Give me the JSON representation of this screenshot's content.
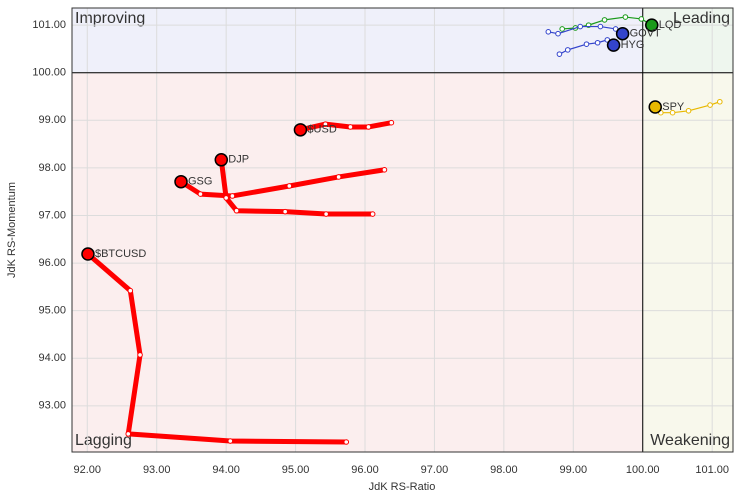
{
  "chart_data": {
    "type": "rrg",
    "x_label": "JdK RS-Ratio",
    "y_label": "JdK RS-Momentum",
    "xlim": [
      91.78,
      101.3
    ],
    "ylim": [
      92.03,
      101.36
    ],
    "xticks": [
      {
        "value": 92,
        "label": "92.00"
      },
      {
        "value": 93,
        "label": "93.00"
      },
      {
        "value": 94,
        "label": "94.00"
      },
      {
        "value": 95,
        "label": "95.00"
      },
      {
        "value": 96,
        "label": "96.00"
      },
      {
        "value": 97,
        "label": "97.00"
      },
      {
        "value": 98,
        "label": "98.00"
      },
      {
        "value": 99,
        "label": "99.00"
      },
      {
        "value": 100,
        "label": "100.00"
      },
      {
        "value": 101,
        "label": "101.00"
      }
    ],
    "yticks": [
      {
        "value": 93,
        "label": "93.00"
      },
      {
        "value": 94,
        "label": "94.00"
      },
      {
        "value": 95,
        "label": "95.00"
      },
      {
        "value": 96,
        "label": "96.00"
      },
      {
        "value": 97,
        "label": "97.00"
      },
      {
        "value": 98,
        "label": "98.00"
      },
      {
        "value": 99,
        "label": "99.00"
      },
      {
        "value": 100,
        "label": "100.00"
      },
      {
        "value": 101,
        "label": "101.00"
      }
    ],
    "grid": true,
    "quadrant_center": {
      "x": 100,
      "y": 100
    },
    "quadrants": [
      {
        "label": "Improving",
        "corner": "top-left",
        "color": "#8c91e3",
        "fill": "#eff0fa"
      },
      {
        "label": "Leading",
        "corner": "top-right",
        "color": "#7cc47c",
        "fill": "#eef6ee"
      },
      {
        "label": "Lagging",
        "corner": "bottom-left",
        "color": "#f29a9a",
        "fill": "#fbeeee"
      },
      {
        "label": "Weakening",
        "corner": "bottom-right",
        "color": "#f0b020",
        "fill": "#f8f8ec"
      }
    ],
    "series": [
      {
        "name": "$BTCUSD",
        "color": "#ff0000",
        "x": [
          95.73,
          94.06,
          92.59,
          92.76,
          92.62,
          92.01
        ],
        "values": [
          92.24,
          92.26,
          92.41,
          94.07,
          95.42,
          96.19
        ]
      },
      {
        "name": "GSG",
        "color": "#ff0000",
        "x": [
          96.28,
          95.62,
          94.91,
          94.09,
          93.63,
          93.35
        ],
        "values": [
          97.96,
          97.81,
          97.62,
          97.41,
          97.45,
          97.71
        ]
      },
      {
        "name": "DJP",
        "color": "#ff0000",
        "x": [
          96.11,
          95.44,
          94.85,
          94.15,
          94.0,
          93.93
        ],
        "values": [
          97.03,
          97.03,
          97.08,
          97.1,
          97.37,
          98.17
        ]
      },
      {
        "name": "$USD",
        "color": "#ff0000",
        "x": [
          96.38,
          96.05,
          95.79,
          95.43,
          95.07
        ],
        "values": [
          98.95,
          98.86,
          98.86,
          98.92,
          98.8
        ]
      },
      {
        "name": "LQD",
        "color": "#1a9a1a",
        "x": [
          98.84,
          99.03,
          99.22,
          99.45,
          99.75,
          99.98,
          100.13
        ],
        "values": [
          100.92,
          100.94,
          101.0,
          101.11,
          101.17,
          101.13,
          101.0
        ]
      },
      {
        "name": "GOVT",
        "color": "#3344cc",
        "x": [
          98.64,
          98.78,
          99.1,
          99.39,
          99.61,
          99.71
        ],
        "values": [
          100.86,
          100.82,
          100.97,
          100.97,
          100.92,
          100.82
        ]
      },
      {
        "name": "HYG",
        "color": "#3344cc",
        "x": [
          98.8,
          98.92,
          99.19,
          99.35,
          99.49,
          99.58
        ],
        "values": [
          100.39,
          100.48,
          100.6,
          100.63,
          100.69,
          100.58
        ]
      },
      {
        "name": "SPY",
        "color": "#e8b800",
        "x": [
          101.11,
          100.97,
          100.66,
          100.43,
          100.26,
          100.18
        ],
        "values": [
          99.39,
          99.32,
          99.2,
          99.16,
          99.16,
          99.28
        ]
      }
    ]
  }
}
